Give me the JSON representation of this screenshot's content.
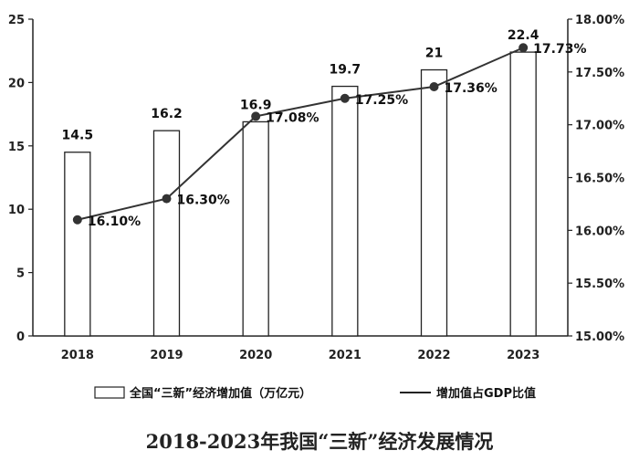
{
  "chart_data": {
    "type": "bar+line",
    "title": "2018-2023年我国“三新”经济发展情况",
    "categories": [
      "2018",
      "2019",
      "2020",
      "2021",
      "2022",
      "2023"
    ],
    "series": [
      {
        "name": "全国“三新”经济增加值（万亿元）",
        "type": "bar",
        "axis": "left",
        "values": [
          14.5,
          16.2,
          16.9,
          19.7,
          21,
          22.4
        ],
        "labels": [
          "14.5",
          "16.2",
          "16.9",
          "19.7",
          "21",
          "22.4"
        ],
        "color": "#ffffff"
      },
      {
        "name": "增加值占GDP比值",
        "type": "line",
        "axis": "right",
        "values": [
          16.1,
          16.3,
          17.08,
          17.25,
          17.36,
          17.73
        ],
        "labels": [
          "16.10%",
          "16.30%",
          "17.08%",
          "17.25%",
          "17.36%",
          "17.73%"
        ],
        "color": "#333333"
      }
    ],
    "left_axis": {
      "ylim": [
        0,
        25
      ],
      "ticks": [
        "0",
        "5",
        "10",
        "15",
        "20",
        "25"
      ]
    },
    "right_axis": {
      "ylim": [
        15.0,
        18.0
      ],
      "ticks": [
        "15.00%",
        "15.50%",
        "16.00%",
        "16.50%",
        "17.00%",
        "17.50%",
        "18.00%"
      ]
    },
    "grid": false,
    "legend": "bottom"
  }
}
